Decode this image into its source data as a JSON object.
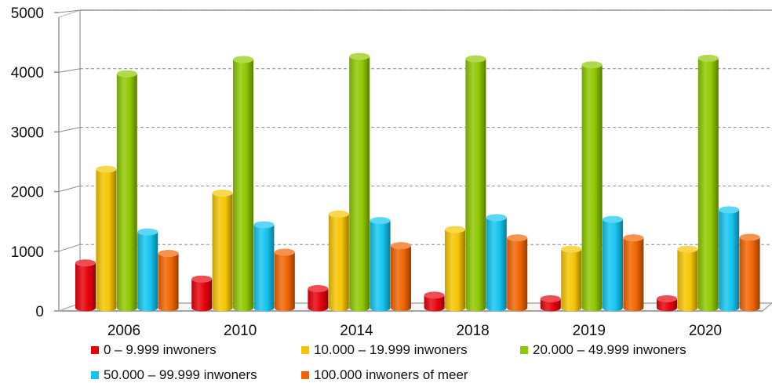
{
  "chart_data": {
    "type": "bar",
    "categories": [
      "2006",
      "2010",
      "2014",
      "2018",
      "2019",
      "2020"
    ],
    "series": [
      {
        "name": "0 – 9.999 inwoners",
        "color": "#e8000b",
        "values": [
          830,
          560,
          400,
          290,
          230,
          230
        ]
      },
      {
        "name": "10.000 – 19.999 inwoners",
        "color": "#f5c400",
        "values": [
          2400,
          2000,
          1650,
          1390,
          1060,
          1060
        ]
      },
      {
        "name": "20.000 – 49.999 inwoners",
        "color": "#8fc800",
        "values": [
          4000,
          4240,
          4290,
          4250,
          4150,
          4260
        ]
      },
      {
        "name": "50.000 – 99.999 inwoners",
        "color": "#14c4f0",
        "values": [
          1350,
          1470,
          1540,
          1590,
          1560,
          1720
        ]
      },
      {
        "name": "100.000 inwoners of meer",
        "color": "#f06400",
        "values": [
          990,
          1010,
          1120,
          1250,
          1250,
          1260
        ]
      }
    ],
    "yticks": [
      "0",
      "1000",
      "2000",
      "3000",
      "4000",
      "5000"
    ],
    "ylim": [
      0,
      5000
    ],
    "grid": true,
    "legend": "bottom",
    "style": "3d-cylinder"
  }
}
